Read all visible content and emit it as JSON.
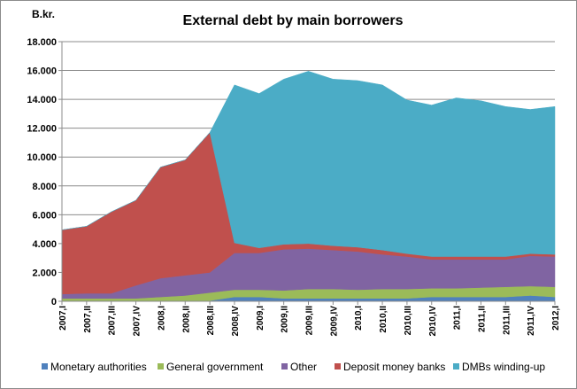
{
  "chart_data": {
    "type": "area",
    "stacked": true,
    "title": "External debt by main borrowers",
    "ylabel": "B.kr.",
    "xlabel": "",
    "ylim": [
      0,
      18000
    ],
    "y_tick_step": 2000,
    "y_tick_labels": [
      "0",
      "2.000",
      "4.000",
      "6.000",
      "8.000",
      "10.000",
      "12.000",
      "14.000",
      "16.000",
      "18.000"
    ],
    "grid": true,
    "legend_position": "bottom",
    "categories": [
      "2007,I",
      "2007,II",
      "2007,III",
      "2007,IV",
      "2008,I",
      "2008,II",
      "2008,III",
      "2008,IV",
      "2009,I",
      "2009,II",
      "2009,III",
      "2009,IV",
      "2010,I",
      "2010,II",
      "2010,III",
      "2010,IV",
      "2011,I",
      "2011,II",
      "2011,III",
      "2011,IV",
      "2012,I"
    ],
    "series": [
      {
        "name": "Monetary authorities",
        "color": "#4f81bd",
        "values": [
          50,
          50,
          50,
          50,
          50,
          50,
          50,
          300,
          300,
          200,
          200,
          200,
          200,
          200,
          200,
          300,
          300,
          300,
          300,
          400,
          300
        ]
      },
      {
        "name": "General government",
        "color": "#9bbb59",
        "values": [
          150,
          150,
          150,
          150,
          250,
          350,
          550,
          500,
          500,
          550,
          650,
          650,
          600,
          650,
          650,
          600,
          600,
          650,
          700,
          650,
          700
        ]
      },
      {
        "name": "Other",
        "color": "#8064a2",
        "values": [
          300,
          350,
          350,
          900,
          1300,
          1400,
          1400,
          2550,
          2550,
          2850,
          2800,
          2700,
          2650,
          2400,
          2250,
          2000,
          2000,
          1950,
          1900,
          2100,
          2100
        ]
      },
      {
        "name": "Deposit money banks",
        "color": "#c0504d",
        "values": [
          4450,
          4650,
          5650,
          5900,
          7700,
          8000,
          9700,
          700,
          350,
          350,
          350,
          300,
          300,
          300,
          200,
          200,
          200,
          200,
          200,
          150,
          150
        ]
      },
      {
        "name": "DMBs winding-up",
        "color": "#4bacc6",
        "values": [
          0,
          0,
          0,
          0,
          0,
          0,
          0,
          10950,
          10700,
          11450,
          11950,
          11550,
          11550,
          11450,
          10650,
          10500,
          11000,
          10800,
          10400,
          10000,
          10250
        ]
      }
    ]
  }
}
